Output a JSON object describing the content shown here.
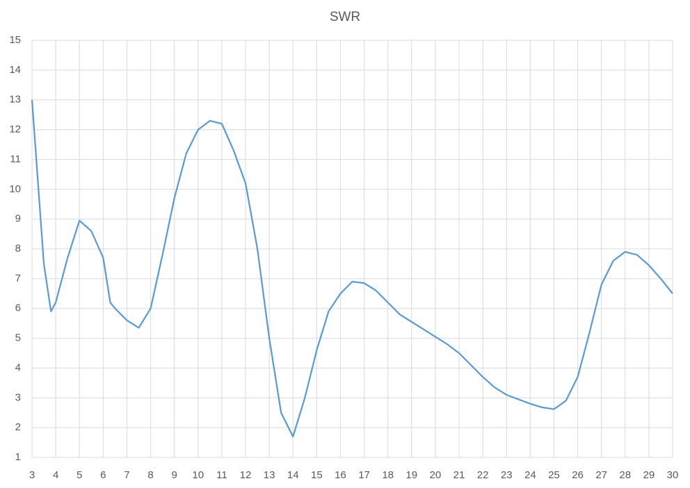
{
  "chart_data": {
    "type": "line",
    "title": "SWR",
    "x": [
      3,
      3.5,
      3.8,
      4,
      4.5,
      5,
      5.5,
      6,
      6.3,
      6.5,
      7,
      7.5,
      8,
      8.5,
      9,
      9.5,
      10,
      10.5,
      11,
      11.5,
      12,
      12.5,
      13,
      13.5,
      14,
      14.5,
      15,
      15.5,
      16,
      16.5,
      17,
      17.5,
      18,
      18.5,
      19,
      19.5,
      20,
      20.5,
      21,
      21.5,
      22,
      22.5,
      23,
      23.5,
      24,
      24.5,
      25,
      25.5,
      26,
      26.5,
      27,
      27.5,
      28,
      28.5,
      29,
      29.5,
      30
    ],
    "series": [
      {
        "name": "SWR",
        "color": "#5b9bd5",
        "values": [
          13.0,
          7.5,
          5.9,
          6.2,
          7.7,
          8.95,
          8.6,
          7.7,
          6.2,
          6.0,
          5.6,
          5.35,
          6.0,
          7.8,
          9.7,
          11.2,
          12.0,
          12.3,
          12.2,
          11.3,
          10.2,
          8.0,
          5.0,
          2.5,
          1.7,
          3.0,
          4.6,
          5.9,
          6.5,
          6.9,
          6.85,
          6.6,
          6.2,
          5.8,
          5.55,
          5.3,
          5.05,
          4.8,
          4.5,
          4.1,
          3.7,
          3.35,
          3.1,
          2.95,
          2.8,
          2.68,
          2.62,
          2.9,
          3.7,
          5.2,
          6.8,
          7.6,
          7.9,
          7.8,
          7.45,
          7.0,
          6.5
        ]
      }
    ],
    "xlim": [
      3,
      30
    ],
    "xticks": [
      3,
      4,
      5,
      6,
      7,
      8,
      9,
      10,
      11,
      12,
      13,
      14,
      15,
      16,
      17,
      18,
      19,
      20,
      21,
      22,
      23,
      24,
      25,
      26,
      27,
      28,
      29,
      30
    ],
    "ylim": [
      1,
      15
    ],
    "yticks": [
      1,
      2,
      3,
      4,
      5,
      6,
      7,
      8,
      9,
      10,
      11,
      12,
      13,
      14,
      15
    ],
    "grid": true
  }
}
